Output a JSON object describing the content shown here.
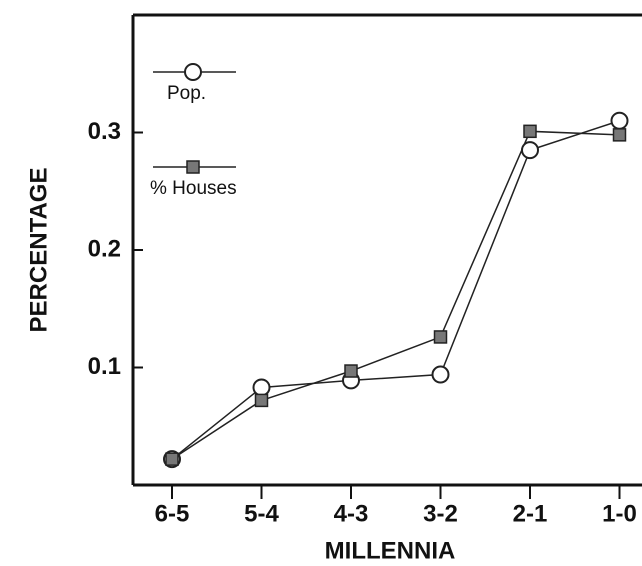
{
  "chart_data": {
    "type": "line",
    "xlabel": "MILLENNIA",
    "ylabel": "PERCENTAGE",
    "categories": [
      "6-5",
      "5-4",
      "4-3",
      "3-2",
      "2-1",
      "1-0"
    ],
    "series": [
      {
        "name": "Pop.",
        "color": "#222222",
        "marker": "circle",
        "values": [
          0.022,
          0.083,
          0.089,
          0.094,
          0.285,
          0.31
        ]
      },
      {
        "name": "% Houses",
        "color": "#222222",
        "marker": "square",
        "values": [
          0.022,
          0.072,
          0.097,
          0.126,
          0.301,
          0.298
        ]
      }
    ],
    "ylim": [
      0,
      0.4
    ],
    "yticks": [
      0.1,
      0.2,
      0.3
    ],
    "grid": false,
    "legend": "upper left"
  }
}
